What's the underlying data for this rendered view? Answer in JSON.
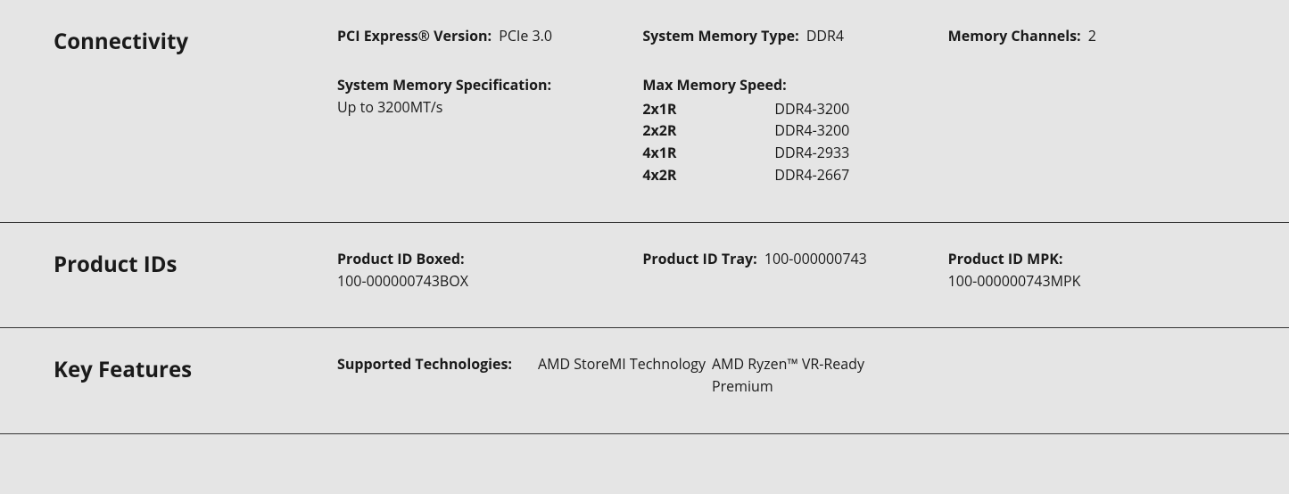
{
  "sections": {
    "connectivity": {
      "title": "Connectivity",
      "pci_label": "PCI Express® Version:",
      "pci_value": "PCIe 3.0",
      "mem_type_label": "System Memory Type:",
      "mem_type_value": "DDR4",
      "mem_channels_label": "Memory Channels:",
      "mem_channels_value": "2",
      "mem_spec_label": "System Memory Specification:",
      "mem_spec_value": "Up to 3200MT/s",
      "max_speed_label": "Max Memory Speed:",
      "max_speed_rows": [
        {
          "config": "2x1R",
          "speed": "DDR4-3200"
        },
        {
          "config": "2x2R",
          "speed": "DDR4-3200"
        },
        {
          "config": "4x1R",
          "speed": "DDR4-2933"
        },
        {
          "config": "4x2R",
          "speed": "DDR4-2667"
        }
      ]
    },
    "product_ids": {
      "title": "Product IDs",
      "boxed_label": "Product ID Boxed:",
      "boxed_value": "100-000000743BOX",
      "tray_label": "Product ID Tray:",
      "tray_value": "100-000000743",
      "mpk_label": "Product ID MPK:",
      "mpk_value": "100-000000743MPK"
    },
    "key_features": {
      "title": "Key Features",
      "tech_label": "Supported Technologies:",
      "tech_items": [
        "AMD StoreMI Technology",
        "AMD Ryzen™ VR-Ready Premium"
      ]
    }
  }
}
